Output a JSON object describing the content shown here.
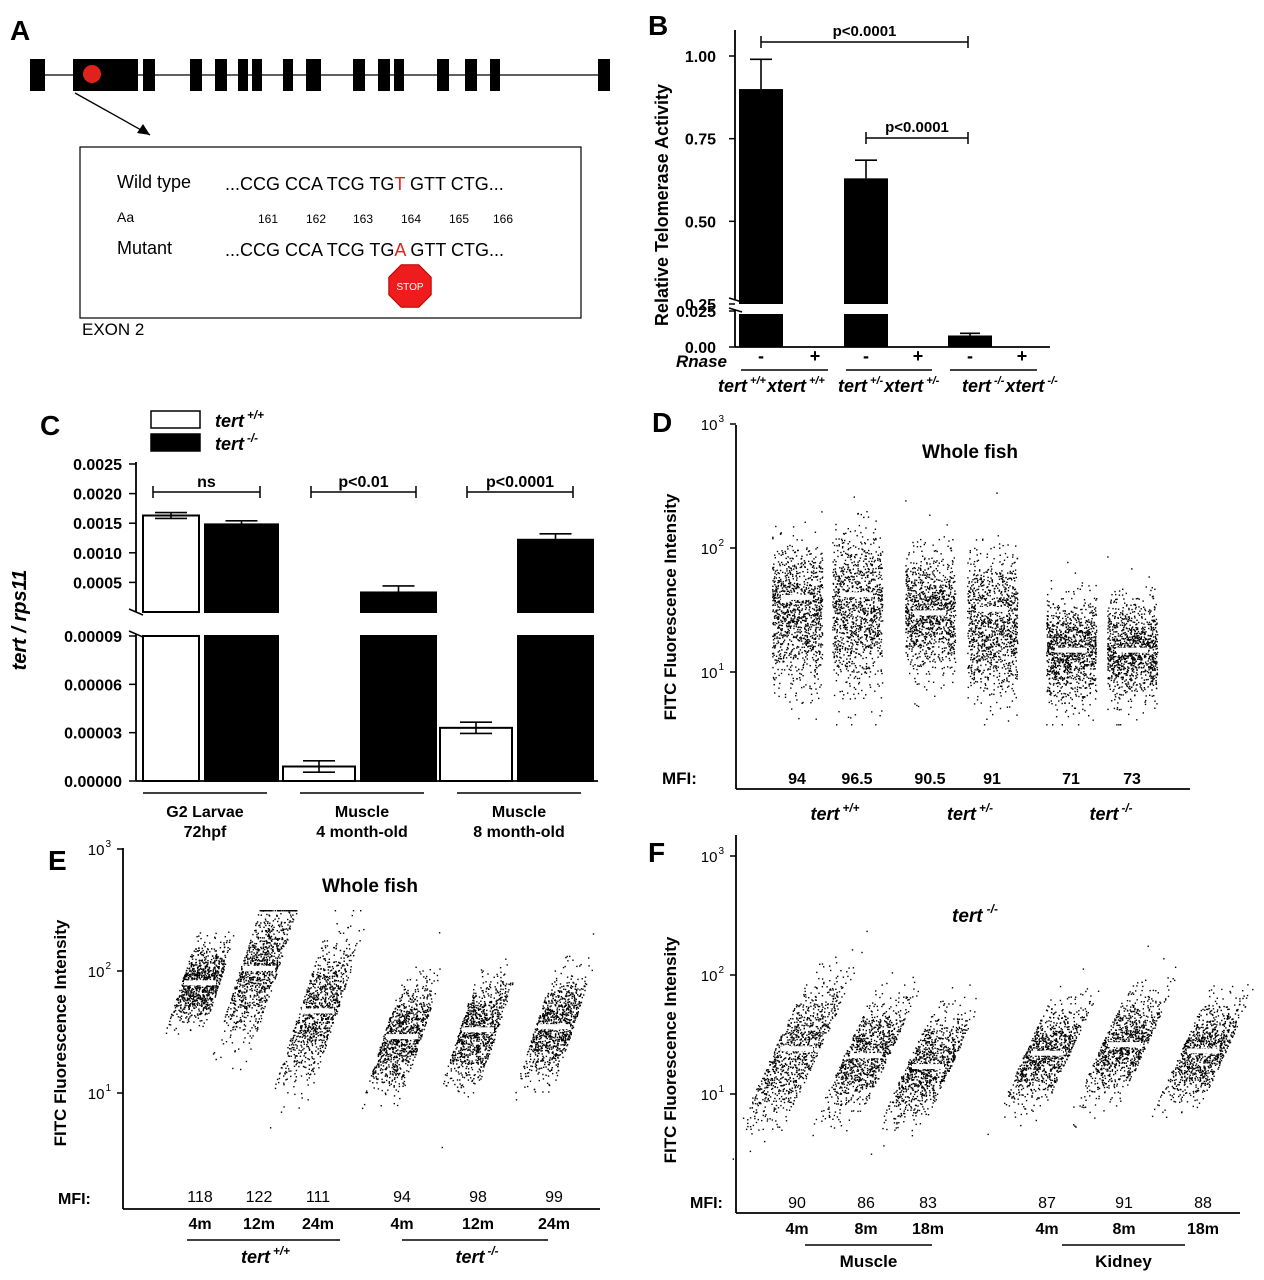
{
  "panels": {
    "A": {
      "label": "A",
      "box_rows": [
        {
          "name": "Wild type",
          "pre": "...CCG CCA TCG TG",
          "mut": "T",
          "post": " GTT CTG..."
        },
        {
          "name": "Mutant",
          "pre": "...CCG CCA TCG TG",
          "mut": "A",
          "post": " GTT CTG..."
        }
      ],
      "aa_label": "Aa",
      "aa_numbers": [
        "161",
        "162",
        "163",
        "164",
        "165",
        "166"
      ],
      "stop_label": "STOP",
      "exon_label": "EXON 2",
      "colors": {
        "mutation": "#e0221c",
        "stop": "#ee1c1c"
      }
    },
    "B": {
      "label": "B",
      "ylabel": "Relative Telomerase Activity",
      "rnase_label": "Rnase",
      "chart_data": {
        "type": "bar",
        "ylabel": "Relative Telomerase Activity",
        "y_ticks_upper": [
          "1.00",
          "0.75",
          "0.50",
          "0.25"
        ],
        "y_ticks_lower": [
          "0.025",
          "0.00"
        ],
        "rnase": [
          "-",
          "+",
          "-",
          "+",
          "-",
          "+"
        ],
        "groups": [
          {
            "pre": "tert",
            "s1": "+/+",
            "mid": "xtert",
            "s2": "+/+"
          },
          {
            "pre": "tert",
            "s1": "+/-",
            "mid": "xtert",
            "s2": "+/-"
          },
          {
            "pre": "tert",
            "s1": "-/-",
            "mid": "xtert",
            "s2": "-/-"
          }
        ],
        "bars": [
          {
            "group": 0,
            "rnase": "-",
            "value": 0.9,
            "err": 0.09
          },
          {
            "group": 0,
            "rnase": "+",
            "value": 0,
            "err": 0
          },
          {
            "group": 1,
            "rnase": "-",
            "value": 0.63,
            "err": 0.055
          },
          {
            "group": 1,
            "rnase": "+",
            "value": 0,
            "err": 0
          },
          {
            "group": 2,
            "rnase": "-",
            "value": 0.008,
            "err": 0.0015
          },
          {
            "group": 2,
            "rnase": "+",
            "value": 0,
            "err": 0
          }
        ],
        "significance": [
          {
            "from": 0,
            "to": 2,
            "label": "p<0.0001"
          },
          {
            "from": 1,
            "to": 2,
            "label": "p<0.0001"
          }
        ]
      }
    },
    "C": {
      "label": "C",
      "ylabel_pre": "tert",
      "ylabel_post": " / rps11",
      "chart_data": {
        "type": "bar",
        "legend": [
          {
            "pre": "tert",
            "sup": "+/+",
            "fill": "#ffffff"
          },
          {
            "pre": "tert",
            "sup": "-/-",
            "fill": "#000000"
          }
        ],
        "y_ticks_upper": [
          "0.0025",
          "0.0020",
          "0.0015",
          "0.0010",
          "0.0005"
        ],
        "y_ticks_lower": [
          "0.00009",
          "0.00006",
          "0.00003",
          "0.00000"
        ],
        "categories": [
          {
            "line1": "G2 Larvae",
            "line2": "72hpf"
          },
          {
            "line1": "Muscle",
            "line2": "4 month-old"
          },
          {
            "line1": "Muscle",
            "line2": "8 month-old"
          }
        ],
        "series": [
          {
            "name": "tert +/+",
            "values": [
              0.00163,
              9e-06,
              3.3e-05
            ],
            "errors": [
              5e-05,
              3.5e-06,
              3.5e-06
            ]
          },
          {
            "name": "tert -/-",
            "values": [
              0.00148,
              0.00033,
              0.00122
            ],
            "errors": [
              6e-05,
              0.00011,
              0.0001
            ]
          }
        ],
        "significance": [
          "ns",
          "p<0.01",
          "p<0.0001"
        ]
      }
    },
    "D": {
      "label": "D",
      "title": "Whole fish",
      "ylabel": "FITC Fluorescence  Intensity",
      "mfi_label": "MFI:",
      "chart_data": {
        "type": "scatter",
        "y_scale": "log",
        "y_ticks": [
          {
            "base": "10",
            "exp": "3"
          },
          {
            "base": "10",
            "exp": "2"
          },
          {
            "base": "10",
            "exp": "1"
          }
        ],
        "columns": [
          {
            "mfi": "94",
            "median": 40
          },
          {
            "mfi": "96.5",
            "median": 42
          },
          {
            "mfi": "90.5",
            "median": 30
          },
          {
            "mfi": "91",
            "median": 32
          },
          {
            "mfi": "71",
            "median": 15
          },
          {
            "mfi": "73",
            "median": 15
          }
        ],
        "groups": [
          {
            "pre": "tert",
            "sup": "+/+"
          },
          {
            "pre": "tert",
            "sup": "+/-"
          },
          {
            "pre": "tert",
            "sup": "-/-"
          }
        ]
      }
    },
    "E": {
      "label": "E",
      "title": "Whole fish",
      "ylabel": "FITC Fluorescence  Intensity",
      "mfi_label": "MFI:",
      "chart_data": {
        "type": "scatter",
        "y_scale": "log",
        "y_ticks": [
          {
            "base": "10",
            "exp": "3"
          },
          {
            "base": "10",
            "exp": "2"
          },
          {
            "base": "10",
            "exp": "1"
          }
        ],
        "columns": [
          {
            "mfi": "118",
            "age": "4m",
            "median": 80
          },
          {
            "mfi": "122",
            "age": "12m",
            "median": 105
          },
          {
            "mfi": "111",
            "age": "24m",
            "median": 47
          },
          {
            "mfi": "94",
            "age": "4m",
            "median": 29
          },
          {
            "mfi": "98",
            "age": "12m",
            "median": 33
          },
          {
            "mfi": "99",
            "age": "24m",
            "median": 35
          }
        ],
        "groups": [
          {
            "pre": "tert",
            "sup": "+/+"
          },
          {
            "pre": "tert",
            "sup": "-/-"
          }
        ]
      }
    },
    "F": {
      "label": "F",
      "genotype_pre": "tert",
      "genotype_sup": "-/-",
      "ylabel": "FITC Fluorescence  Intensity",
      "mfi_label": "MFI:",
      "chart_data": {
        "type": "scatter",
        "y_scale": "log",
        "y_ticks": [
          {
            "base": "10",
            "exp": "3"
          },
          {
            "base": "10",
            "exp": "2"
          },
          {
            "base": "10",
            "exp": "1"
          }
        ],
        "columns": [
          {
            "mfi": "90",
            "age": "4m",
            "median": 24
          },
          {
            "mfi": "86",
            "age": "8m",
            "median": 21
          },
          {
            "mfi": "83",
            "age": "18m",
            "median": 17
          },
          {
            "mfi": "87",
            "age": "4m",
            "median": 22
          },
          {
            "mfi": "91",
            "age": "8m",
            "median": 26
          },
          {
            "mfi": "88",
            "age": "18m",
            "median": 23
          }
        ],
        "groups": [
          "Muscle",
          "Kidney"
        ]
      }
    }
  }
}
